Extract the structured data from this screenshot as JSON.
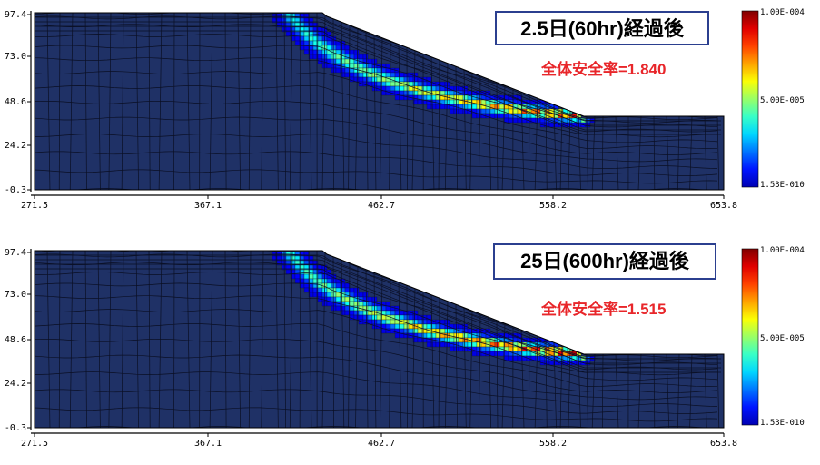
{
  "colors": {
    "background": "#1f3166",
    "mesh_line": "#0a0f24",
    "title_border": "#2b3f8f",
    "fos_text": "#e8262a"
  },
  "axes": {
    "x_ticks": [
      "271.5",
      "367.1",
      "462.7",
      "558.2",
      "653.8"
    ],
    "y_ticks": [
      "97.4",
      "73.0",
      "48.6",
      "24.2",
      "-0.3"
    ]
  },
  "colorbar": {
    "max": "1.00E-004",
    "mid": "5.00E-005",
    "min": "1.53E-010"
  },
  "panels": [
    {
      "title": "2.5日(60hr)経過後",
      "fos": "全体安全率=1.840",
      "band_strength": 0.9
    },
    {
      "title": "25日(600hr)経過後",
      "fos": "全体安全率=1.515",
      "band_strength": 1.0
    }
  ]
}
